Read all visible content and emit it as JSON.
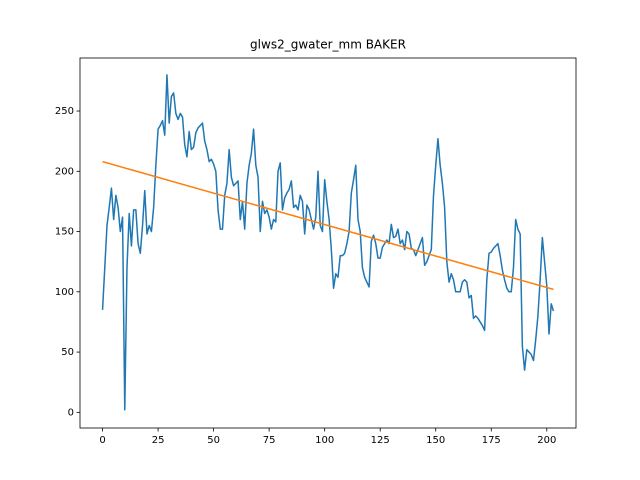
{
  "chart_data": {
    "type": "line",
    "title": "glws2_gwater_mm BAKER",
    "xlim": [
      -10.15,
      213.15
    ],
    "ylim": [
      -13,
      294
    ],
    "xticks": [
      0,
      25,
      50,
      75,
      100,
      125,
      150,
      175,
      200
    ],
    "yticks": [
      0,
      50,
      100,
      150,
      200,
      250
    ],
    "series": [
      {
        "color": "#1f77b4",
        "x": [
          0,
          1,
          2,
          3,
          4,
          5,
          6,
          7,
          8,
          9,
          10,
          11,
          12,
          13,
          14,
          15,
          16,
          17,
          18,
          19,
          20,
          21,
          22,
          23,
          24,
          25,
          26,
          27,
          28,
          29,
          30,
          31,
          32,
          33,
          34,
          35,
          36,
          37,
          38,
          39,
          40,
          41,
          42,
          43,
          44,
          45,
          46,
          47,
          48,
          49,
          50,
          51,
          52,
          53,
          54,
          55,
          56,
          57,
          58,
          59,
          60,
          61,
          62,
          63,
          64,
          65,
          66,
          67,
          68,
          69,
          70,
          71,
          72,
          73,
          74,
          75,
          76,
          77,
          78,
          79,
          80,
          81,
          82,
          83,
          84,
          85,
          86,
          87,
          88,
          89,
          90,
          91,
          92,
          93,
          94,
          95,
          96,
          97,
          98,
          99,
          100,
          101,
          102,
          103,
          104,
          105,
          106,
          107,
          108,
          109,
          110,
          111,
          112,
          113,
          114,
          115,
          116,
          117,
          118,
          119,
          120,
          121,
          122,
          123,
          124,
          125,
          126,
          127,
          128,
          129,
          130,
          131,
          132,
          133,
          134,
          135,
          136,
          137,
          138,
          139,
          140,
          141,
          142,
          143,
          144,
          145,
          146,
          147,
          148,
          149,
          150,
          151,
          152,
          153,
          154,
          155,
          156,
          157,
          158,
          159,
          160,
          161,
          162,
          163,
          164,
          165,
          166,
          167,
          168,
          169,
          170,
          171,
          172,
          173,
          174,
          175,
          176,
          177,
          178,
          179,
          180,
          181,
          182,
          183,
          184,
          185,
          186,
          187,
          188,
          189,
          190,
          191,
          192,
          193,
          194,
          195,
          196,
          197,
          198,
          199,
          200,
          201,
          202,
          203
        ],
        "values": [
          85,
          120,
          155,
          170,
          186,
          160,
          180,
          170,
          150,
          162,
          2,
          120,
          165,
          138,
          168,
          168,
          140,
          132,
          155,
          184,
          148,
          155,
          150,
          170,
          205,
          235,
          238,
          242,
          230,
          280,
          240,
          262,
          265,
          248,
          243,
          248,
          245,
          222,
          212,
          233,
          218,
          220,
          232,
          236,
          238,
          240,
          225,
          218,
          208,
          210,
          206,
          200,
          168,
          152,
          152,
          180,
          190,
          218,
          195,
          188,
          190,
          192,
          160,
          175,
          152,
          190,
          205,
          215,
          235,
          205,
          195,
          150,
          175,
          165,
          168,
          162,
          152,
          160,
          158,
          200,
          207,
          168,
          178,
          182,
          185,
          192,
          170,
          172,
          168,
          180,
          175,
          148,
          172,
          168,
          160,
          152,
          162,
          200,
          155,
          150,
          193,
          175,
          160,
          135,
          103,
          115,
          112,
          130,
          130,
          132,
          140,
          150,
          182,
          193,
          205,
          160,
          150,
          120,
          112,
          108,
          104,
          142,
          147,
          140,
          128,
          128,
          137,
          140,
          143,
          140,
          156,
          145,
          146,
          152,
          140,
          143,
          135,
          150,
          148,
          136,
          135,
          130,
          135,
          140,
          145,
          122,
          125,
          130,
          135,
          180,
          205,
          227,
          205,
          190,
          170,
          125,
          108,
          115,
          110,
          100,
          100,
          100,
          108,
          110,
          108,
          95,
          97,
          78,
          80,
          78,
          75,
          72,
          68,
          110,
          132,
          133,
          136,
          138,
          140,
          130,
          118,
          110,
          103,
          100,
          100,
          120,
          160,
          152,
          148,
          55,
          35,
          52,
          50,
          48,
          43,
          60,
          80,
          110,
          145,
          125,
          105,
          65,
          90,
          84
        ]
      },
      {
        "color": "#ff7f0e",
        "x": [
          0,
          203
        ],
        "values": [
          208,
          102
        ]
      }
    ]
  }
}
